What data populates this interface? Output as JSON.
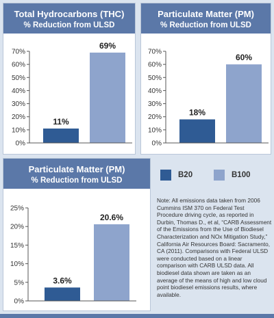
{
  "legend": [
    {
      "label": "B20",
      "color": "#2f5b94"
    },
    {
      "label": "B100",
      "color": "#8ea4cc"
    }
  ],
  "note": "Note: All emissions data taken from 2006 Cummins ISM 370 on Federal Test Procedure driving cycle, as reported in Durbin, Thomas D., et al, “CARB Assessment of the Emissions from the Use of Biodiesel Characterization and NOx Mitigation Study,” California Air Resources Board: Sacramento, CA (2011). Comparisons with Federal ULSD were conducted based on a linear comparison with CARB ULSD data. All biodiesel data shown are taken as an average of the means of high and low cloud point biodiesel emissions results, where available.",
  "chart_data": [
    {
      "type": "bar",
      "title": "Total Hydrocarbons (THC)",
      "subtitle": "% Reduction from ULSD",
      "series": [
        {
          "name": "B20",
          "value": 11,
          "label": "11%"
        },
        {
          "name": "B100",
          "value": 69,
          "label": "69%"
        }
      ],
      "ylim": [
        0,
        70
      ],
      "yticks": [
        {
          "value": 0,
          "label": "0%"
        },
        {
          "value": 10,
          "label": "10%"
        },
        {
          "value": 20,
          "label": "20%"
        },
        {
          "value": 30,
          "label": "30%"
        },
        {
          "value": 40,
          "label": "40%"
        },
        {
          "value": 50,
          "label": "50%"
        },
        {
          "value": 60,
          "label": "60%"
        },
        {
          "value": 70,
          "label": "70%"
        }
      ],
      "grid": false
    },
    {
      "type": "bar",
      "title": "Particulate Matter (PM)",
      "subtitle": "% Reduction from ULSD",
      "series": [
        {
          "name": "B20",
          "value": 18,
          "label": "18%"
        },
        {
          "name": "B100",
          "value": 60,
          "label": "60%"
        }
      ],
      "ylim": [
        0,
        70
      ],
      "yticks": [
        {
          "value": 0,
          "label": "0%"
        },
        {
          "value": 10,
          "label": "10%"
        },
        {
          "value": 20,
          "label": "20%"
        },
        {
          "value": 30,
          "label": "30%"
        },
        {
          "value": 40,
          "label": "40%"
        },
        {
          "value": 50,
          "label": "50%"
        },
        {
          "value": 60,
          "label": "60%"
        },
        {
          "value": 70,
          "label": "70%"
        }
      ],
      "grid": false
    },
    {
      "type": "bar",
      "title": "Particulate Matter (PM)",
      "subtitle": "% Reduction from ULSD",
      "series": [
        {
          "name": "B20",
          "value": 3.6,
          "label": "3.6%"
        },
        {
          "name": "B100",
          "value": 20.6,
          "label": "20.6%"
        }
      ],
      "ylim": [
        0,
        25
      ],
      "yticks": [
        {
          "value": 0,
          "label": "0%"
        },
        {
          "value": 5,
          "label": "5%"
        },
        {
          "value": 10,
          "label": "10%"
        },
        {
          "value": 15,
          "label": "15%"
        },
        {
          "value": 20,
          "label": "20%"
        },
        {
          "value": 25,
          "label": "25%"
        }
      ],
      "grid": false
    }
  ]
}
